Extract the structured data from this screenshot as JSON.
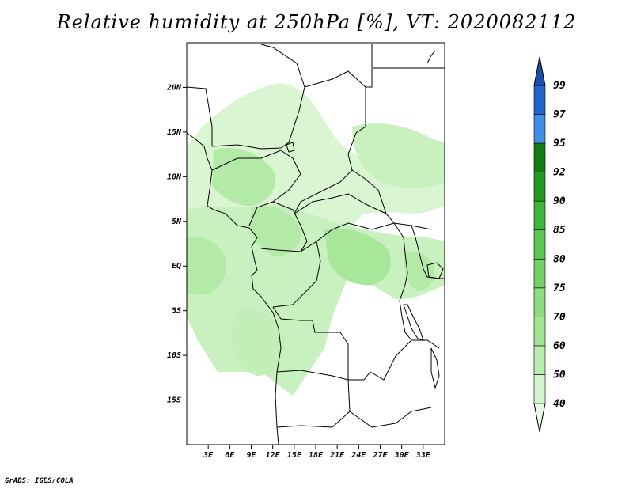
{
  "title": "Relative humidity at 250hPa [%], VT: 2020082112",
  "credit": "GrADS: IGES/COLA",
  "map": {
    "lon_range": [
      0,
      36
    ],
    "lat_range": [
      -20,
      25
    ],
    "x_ticks": [
      "3E",
      "6E",
      "9E",
      "12E",
      "15E",
      "18E",
      "21E",
      "24E",
      "27E",
      "30E",
      "33E"
    ],
    "x_tick_values": [
      3,
      6,
      9,
      12,
      15,
      18,
      21,
      24,
      27,
      30,
      33
    ],
    "y_ticks": [
      "20N",
      "15N",
      "10N",
      "5N",
      "EQ",
      "5S",
      "10S",
      "15S"
    ],
    "y_tick_values": [
      20,
      15,
      10,
      5,
      0,
      -5,
      -10,
      -15
    ]
  },
  "colorbar": {
    "levels": [
      "40",
      "50",
      "60",
      "70",
      "75",
      "80",
      "85",
      "90",
      "92",
      "95",
      "97",
      "99"
    ],
    "colors": [
      "#e9fbe6",
      "#d3f5cc",
      "#b9edb0",
      "#a1e594",
      "#8ddd80",
      "#72d267",
      "#5bc652",
      "#3db63a",
      "#229a22",
      "#137d13",
      "#3f8fe6",
      "#2266cc",
      "#1a4fa8"
    ]
  }
}
